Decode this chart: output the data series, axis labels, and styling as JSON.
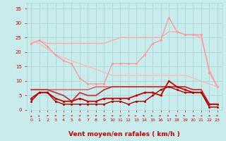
{
  "bg_color": "#c8ecec",
  "grid_color": "#a8d8d8",
  "xlabel": "Vent moyen/en rafales ( km/h )",
  "xlabel_color": "#cc0000",
  "xlabel_fontsize": 6.5,
  "tick_color": "#cc0000",
  "xlim": [
    -0.5,
    23.5
  ],
  "ylim": [
    0,
    37
  ],
  "yticks": [
    0,
    5,
    10,
    15,
    20,
    25,
    30,
    35
  ],
  "xticks": [
    0,
    1,
    2,
    3,
    4,
    5,
    6,
    7,
    8,
    9,
    10,
    11,
    12,
    13,
    14,
    15,
    16,
    17,
    18,
    19,
    20,
    21,
    22,
    23
  ],
  "lines": [
    {
      "name": "rafales_max_light",
      "x": [
        0,
        1,
        2,
        3,
        4,
        5,
        6,
        7,
        8,
        9,
        10,
        11,
        12,
        13,
        14,
        15,
        16,
        17,
        18,
        19,
        20,
        21,
        22,
        23
      ],
      "y": [
        23,
        24,
        23,
        23,
        23,
        23,
        23,
        23,
        23,
        23,
        24,
        25,
        25,
        25,
        25,
        25,
        25,
        27,
        27,
        26,
        26,
        25,
        14,
        8
      ],
      "color": "#ffaaaa",
      "lw": 1.0,
      "marker": null,
      "zorder": 2
    },
    {
      "name": "rafales_with_markers",
      "x": [
        0,
        1,
        2,
        3,
        4,
        5,
        6,
        7,
        8,
        9,
        10,
        11,
        12,
        13,
        14,
        15,
        16,
        17,
        18,
        19,
        20,
        21,
        22,
        23
      ],
      "y": [
        23,
        24,
        22,
        19,
        17,
        16,
        11,
        9,
        9,
        9,
        16,
        16,
        16,
        16,
        19,
        23,
        24,
        32,
        27,
        26,
        26,
        26,
        13,
        8
      ],
      "color": "#ff9999",
      "lw": 1.0,
      "marker": "o",
      "markersize": 2.0,
      "zorder": 3
    },
    {
      "name": "diagonal_light",
      "x": [
        0,
        1,
        2,
        3,
        4,
        5,
        6,
        7,
        8,
        9,
        10,
        11,
        12,
        13,
        14,
        15,
        16,
        17,
        18,
        19,
        20,
        21,
        22,
        23
      ],
      "y": [
        24,
        23,
        21,
        19,
        18,
        17,
        16,
        15,
        14,
        13,
        12,
        12,
        12,
        12,
        12,
        12,
        12,
        12,
        12,
        12,
        11,
        10,
        9,
        8
      ],
      "color": "#ffbbbb",
      "lw": 1.0,
      "marker": null,
      "zorder": 2
    },
    {
      "name": "medium_line",
      "x": [
        0,
        1,
        2,
        3,
        4,
        5,
        6,
        7,
        8,
        9,
        10,
        11,
        12,
        13,
        14,
        15,
        16,
        17,
        18,
        19,
        20,
        21,
        22,
        23
      ],
      "y": [
        7,
        7,
        7,
        6,
        5,
        3,
        6,
        5,
        5,
        7,
        8,
        8,
        8,
        8,
        8,
        8,
        8,
        8,
        8,
        8,
        7,
        7,
        2,
        2
      ],
      "color": "#cc3333",
      "lw": 1.3,
      "marker": null,
      "zorder": 4
    },
    {
      "name": "dark_with_markers",
      "x": [
        0,
        1,
        2,
        3,
        4,
        5,
        6,
        7,
        8,
        9,
        10,
        11,
        12,
        13,
        14,
        15,
        16,
        17,
        18,
        19,
        20,
        21,
        22,
        23
      ],
      "y": [
        4,
        6,
        6,
        4,
        3,
        3,
        4,
        3,
        3,
        4,
        4,
        4,
        4,
        5,
        6,
        6,
        5,
        10,
        8,
        7,
        6,
        6,
        2,
        2
      ],
      "color": "#cc0000",
      "lw": 1.3,
      "marker": "o",
      "markersize": 2.0,
      "zorder": 5
    },
    {
      "name": "darkest",
      "x": [
        0,
        1,
        2,
        3,
        4,
        5,
        6,
        7,
        8,
        9,
        10,
        11,
        12,
        13,
        14,
        15,
        16,
        17,
        18,
        19,
        20,
        21,
        22,
        23
      ],
      "y": [
        3,
        6,
        6,
        3,
        2,
        2,
        2,
        2,
        2,
        2,
        3,
        3,
        2,
        3,
        3,
        5,
        7,
        8,
        7,
        6,
        6,
        6,
        1,
        1
      ],
      "color": "#aa0000",
      "lw": 1.0,
      "marker": "o",
      "markersize": 1.8,
      "zorder": 5
    },
    {
      "name": "medium_flat",
      "x": [
        0,
        1,
        2,
        3,
        4,
        5,
        6,
        7,
        8,
        9,
        10,
        11,
        12,
        13,
        14,
        15,
        16,
        17,
        18,
        19,
        20,
        21,
        22,
        23
      ],
      "y": [
        7,
        7,
        7,
        7,
        7,
        7,
        7,
        7,
        8,
        8,
        8,
        8,
        8,
        8,
        8,
        8,
        8,
        8,
        8,
        8,
        7,
        7,
        2,
        2
      ],
      "color": "#dd5555",
      "lw": 1.0,
      "marker": null,
      "zorder": 3
    }
  ],
  "wind_angles": [
    0,
    15,
    30,
    30,
    30,
    30,
    30,
    30,
    30,
    30,
    30,
    30,
    45,
    60,
    75,
    75,
    90,
    100,
    110,
    120,
    130,
    140,
    150,
    160
  ]
}
